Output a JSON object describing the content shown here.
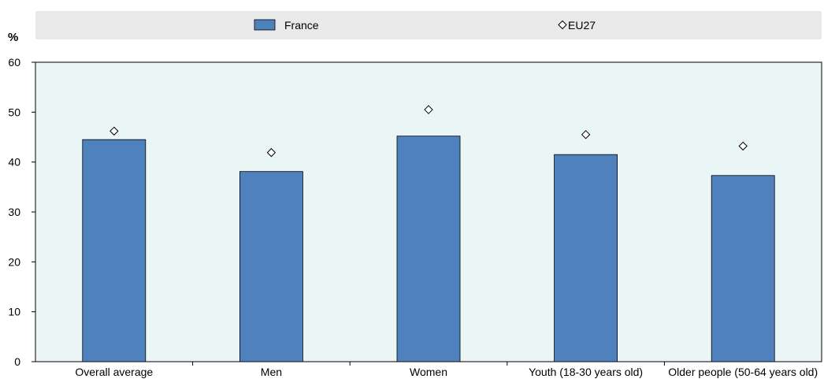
{
  "chart_data": {
    "type": "bar",
    "ylabel": "%",
    "ylim": [
      0,
      60
    ],
    "yticks": [
      0,
      10,
      20,
      30,
      40,
      50,
      60
    ],
    "grid": false,
    "legend_position": "top",
    "categories": [
      "Overall average",
      "Men",
      "Women",
      "Youth (18-30 years old)",
      "Older people (50-64 years old)"
    ],
    "series": [
      {
        "name": "France",
        "kind": "bar",
        "color": "#4f81bd",
        "values": [
          44.5,
          38.1,
          45.2,
          41.5,
          37.3
        ]
      },
      {
        "name": "EU27",
        "kind": "marker",
        "marker": "diamond",
        "values": [
          46.2,
          41.9,
          50.5,
          45.5,
          43.2
        ]
      }
    ]
  },
  "colors": {
    "plot_background": "#eaf6f6",
    "legend_background": "#e9e9e9",
    "bar": "#4f81bd"
  }
}
